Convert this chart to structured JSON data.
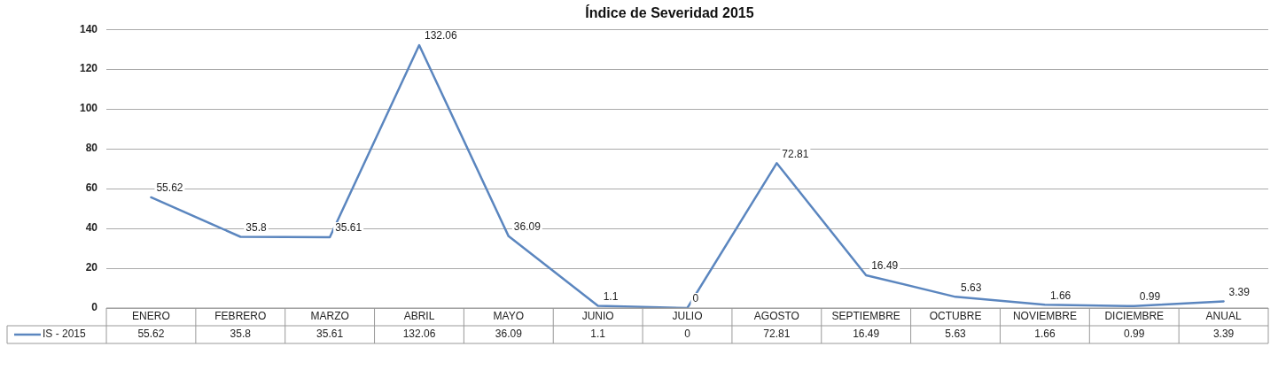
{
  "chart_data": {
    "type": "line",
    "title": "Índice de Severidad 2015",
    "categories": [
      "ENERO",
      "FEBRERO",
      "MARZO",
      "ABRIL",
      "MAYO",
      "JUNIO",
      "JULIO",
      "AGOSTO",
      "SEPTIEMBRE",
      "OCTUBRE",
      "NOVIEMBRE",
      "DICIEMBRE",
      "ANUAL"
    ],
    "series": [
      {
        "name": "IS - 2015",
        "color": "#5b86bf",
        "values": [
          55.62,
          35.8,
          35.61,
          132.06,
          36.09,
          1.1,
          0,
          72.81,
          16.49,
          5.63,
          1.66,
          0.99,
          3.39
        ]
      }
    ],
    "annotations": [
      "55.62",
      "35.8",
      "35.61",
      "132.06",
      "36.09",
      "1.1",
      "0",
      "72.81",
      "16.49",
      "5.63",
      "1.66",
      "0.99",
      "3.39"
    ],
    "ylim": [
      0,
      140
    ],
    "yticks": [
      0,
      20,
      40,
      60,
      80,
      100,
      120,
      140
    ],
    "grid": "y",
    "data_labels": true,
    "legend": "bottom",
    "marker": "none",
    "line_style": "solid"
  }
}
